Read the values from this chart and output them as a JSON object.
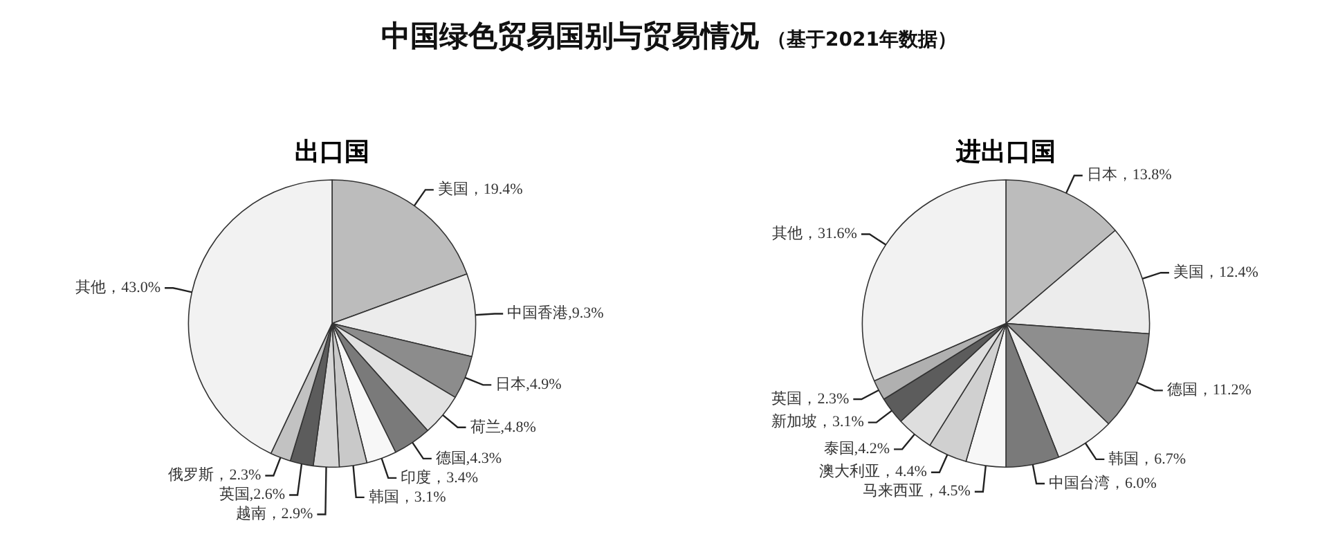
{
  "chart_data": [
    {
      "type": "other",
      "title": "中国绿色贸易国别与贸易情况",
      "subtitle": "（基于2021年数据）"
    },
    {
      "type": "pie",
      "title": "出口国",
      "categories": [
        "美国",
        "中国香港",
        "日本",
        "荷兰",
        "德国",
        "印度",
        "韩国",
        "越南",
        "英国",
        "俄罗斯",
        "其他"
      ],
      "values": [
        19.4,
        9.3,
        4.9,
        4.8,
        4.3,
        3.4,
        3.1,
        2.9,
        2.6,
        2.3,
        43.0
      ],
      "colors": [
        "#bcbcbc",
        "#ececec",
        "#8c8c8c",
        "#e2e2e2",
        "#7a7a7a",
        "#f7f7f7",
        "#c9c9c9",
        "#d6d6d6",
        "#5c5c5c",
        "#c2c2c2",
        "#f2f2f2"
      ],
      "value_labels": [
        "，19.4%",
        ",9.3%",
        ",4.9%",
        ",4.8%",
        ",4.3%",
        "，3.4%",
        "，3.1%",
        "，2.9%",
        ",2.6%",
        "，2.3%",
        "，43.0%"
      ]
    },
    {
      "type": "pie",
      "title": "进出口国",
      "categories": [
        "日本",
        "美国",
        "德国",
        "韩国",
        "中国台湾",
        "马来西亚",
        "澳大利亚",
        "泰国",
        "新加坡",
        "英国",
        "其他"
      ],
      "values": [
        13.8,
        12.4,
        11.2,
        6.7,
        6.0,
        4.5,
        4.4,
        4.2,
        3.1,
        2.3,
        31.6
      ],
      "colors": [
        "#bcbcbc",
        "#ececec",
        "#8e8e8e",
        "#eeeeee",
        "#7a7a7a",
        "#f7f7f7",
        "#d0d0d0",
        "#dedede",
        "#5c5c5c",
        "#b0b0b0",
        "#f2f2f2"
      ],
      "value_labels": [
        "，13.8%",
        "，12.4%",
        "，11.2%",
        "，6.7%",
        "，6.0%",
        "，4.5%",
        "，4.4%",
        ",4.2%",
        "，3.1%",
        "，2.3%",
        "，31.6%"
      ]
    }
  ]
}
